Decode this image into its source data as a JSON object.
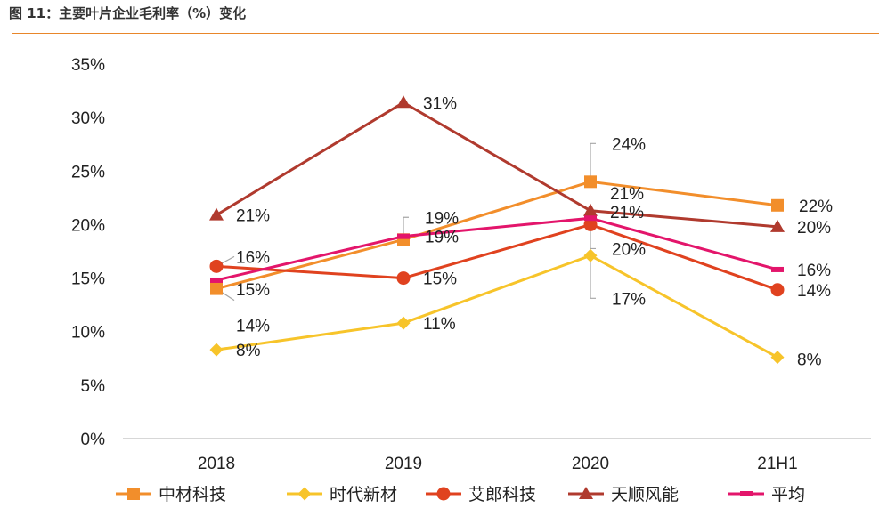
{
  "figure_title": "图 11：主要叶片企业毛利率（%）变化",
  "chart_data": {
    "type": "line",
    "title": "图 11：主要叶片企业毛利率（%）变化",
    "categories": [
      "2018",
      "2019",
      "2020",
      "21H1"
    ],
    "ylim": [
      0,
      35
    ],
    "yticks": [
      "0%",
      "5%",
      "10%",
      "15%",
      "20%",
      "25%",
      "30%",
      "35%"
    ],
    "legend_position": "bottom",
    "series": [
      {
        "name": "中材科技",
        "color": "#f28e2b",
        "marker": "square",
        "values": [
          14.0,
          18.6,
          24.0,
          21.8
        ],
        "labels": [
          "14%",
          "19%",
          "24%",
          "22%"
        ]
      },
      {
        "name": "时代新材",
        "color": "#f7c42a",
        "marker": "diamond",
        "values": [
          8.3,
          10.8,
          17.1,
          7.6
        ],
        "labels": [
          "8%",
          "11%",
          "17%",
          "8%"
        ]
      },
      {
        "name": "艾郎科技",
        "color": "#e0421f",
        "marker": "circle",
        "values": [
          16.1,
          15.0,
          20.0,
          13.9
        ],
        "labels": [
          "16%",
          "15%",
          "20%",
          "14%"
        ]
      },
      {
        "name": "天顺风能",
        "color": "#b03a2e",
        "marker": "triangle",
        "values": [
          20.9,
          31.4,
          21.3,
          19.8
        ],
        "labels": [
          "21%",
          "31%",
          "21%",
          "20%"
        ]
      },
      {
        "name": "平均",
        "color": "#e3156b",
        "marker": "dash",
        "values": [
          14.8,
          18.9,
          20.6,
          15.8
        ],
        "labels": [
          "15%",
          "19%",
          "21%",
          "16%"
        ]
      }
    ]
  }
}
